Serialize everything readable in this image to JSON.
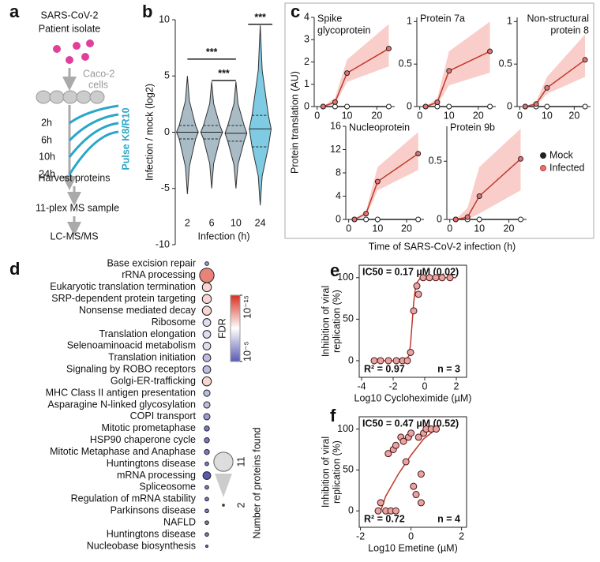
{
  "panel_labels": [
    "a",
    "b",
    "c",
    "d",
    "e",
    "f"
  ],
  "schematic": {
    "title": [
      "SARS-CoV-2",
      "Patient isolate"
    ],
    "cells": [
      "Caco-2",
      "cells"
    ],
    "timepoints": [
      "2h",
      "6h",
      "10h",
      "24h"
    ],
    "pulse": "Pulse K8/R10",
    "steps": [
      "Harvest proteins",
      "11-plex MS sample",
      "LC-MS/MS"
    ]
  },
  "chart_data": [
    {
      "type": "violin",
      "ylabel": "Infection / mock (log2)",
      "xlabel": "Infection (h)",
      "categories": [
        "2",
        "6",
        "10",
        "24"
      ],
      "min": [
        -5.5,
        -5,
        -5,
        -6.5
      ],
      "q1": [
        -0.6,
        -0.6,
        -0.8,
        -1.3
      ],
      "median": [
        0,
        0,
        -0.1,
        0.3
      ],
      "q3": [
        0.6,
        0.6,
        0.6,
        1.5
      ],
      "max": [
        5,
        4.5,
        4.5,
        9.5
      ],
      "colors": [
        "#a9bcc6",
        "#a9bcc6",
        "#a9bcc6",
        "#7fcbe3"
      ],
      "ylim": [
        -10,
        10
      ],
      "yticks": [
        -10,
        -5,
        0,
        5,
        10
      ],
      "annotations": [
        {
          "label": "***",
          "from": 0,
          "to": 2,
          "y": 6.5
        },
        {
          "label": "***",
          "from": 1,
          "to": 2,
          "y": 4.6
        },
        {
          "label": "***",
          "from": 3,
          "to": 3,
          "y": 9.6
        }
      ]
    },
    {
      "type": "line",
      "ylabel": "Protein translation (AU)",
      "xlabel": "Time of SARS-CoV-2 infection (h)",
      "x": [
        2,
        6,
        10,
        24
      ],
      "xlim": [
        -1,
        26
      ],
      "xticks": [
        0,
        10,
        20
      ],
      "legend": [
        {
          "name": "Mock",
          "color": "#222222"
        },
        {
          "name": "Infected",
          "color": "#c0392b"
        }
      ],
      "band_color": "#f7b9b4",
      "subplots": [
        {
          "title": [
            "Spike",
            "glycoprotein"
          ],
          "ylim": [
            0,
            4
          ],
          "yticks": [
            0,
            1,
            2,
            3,
            4
          ],
          "mock": [
            0,
            0,
            0,
            0
          ],
          "infected": [
            0,
            0.2,
            1.5,
            2.6
          ],
          "lower": [
            0,
            0.1,
            1.1,
            1.8
          ],
          "upper": [
            0,
            0.4,
            2.1,
            3.7
          ]
        },
        {
          "title": [
            "Protein 7a"
          ],
          "ylim": [
            0,
            1.05
          ],
          "yticks": [
            0,
            0.5,
            1
          ],
          "mock": [
            0,
            0,
            0,
            0
          ],
          "infected": [
            0,
            0.05,
            0.42,
            0.65
          ],
          "lower": [
            0,
            0.02,
            0.25,
            0.4
          ],
          "upper": [
            0,
            0.1,
            0.65,
            1.0
          ]
        },
        {
          "title": [
            "Non-structural",
            "protein 8"
          ],
          "ylim": [
            0,
            1.05
          ],
          "yticks": [
            0,
            0.5,
            1
          ],
          "mock": [
            0,
            0,
            0,
            0
          ],
          "infected": [
            0,
            0.03,
            0.22,
            0.55
          ],
          "lower": [
            0,
            0.01,
            0.15,
            0.35
          ],
          "upper": [
            0,
            0.06,
            0.35,
            0.85
          ]
        },
        {
          "title": [
            "Nucleoprotein"
          ],
          "ylim": [
            0,
            16
          ],
          "yticks": [
            0,
            4,
            8,
            12,
            16
          ],
          "mock": [
            0,
            0,
            0,
            0
          ],
          "infected": [
            0,
            1,
            6.5,
            11.3
          ],
          "lower": [
            0,
            0.5,
            5,
            8.5
          ],
          "upper": [
            0,
            1.5,
            9,
            15
          ]
        },
        {
          "title": [
            "Protein 9b"
          ],
          "ylim": [
            0,
            0.8
          ],
          "yticks": [
            0,
            0.5
          ],
          "mock": [
            0,
            0,
            0,
            0
          ],
          "infected": [
            0,
            0.02,
            0.2,
            0.52
          ],
          "lower": [
            0,
            0,
            0.05,
            0.25
          ],
          "upper": [
            0,
            0.1,
            0.45,
            0.78
          ]
        }
      ]
    },
    {
      "type": "dot",
      "categories": [
        "Base excision repair",
        "rRNA processing",
        "Eukaryotic translation termination",
        "SRP-dependent protein targeting",
        "Nonsense mediated decay",
        "Ribosome",
        "Translation elongation",
        "Selenoaminoacid metabolism",
        "Translation initiation",
        "Signaling by ROBO receptors",
        "Golgi-ER-trafficking",
        "MHC Class II antigen presentation",
        "Asparagine N-linked glycosylation",
        "COPI transport",
        "Mitotic prometaphase",
        "HSP90 chaperone cycle",
        "Mitotic Metaphase and Anaphase",
        "Huntingtons disease",
        "mRNA processing",
        "Spliceosome",
        "Regulation of mRNA stability",
        "Parkinsons disease",
        "NAFLD",
        "Huntingtons disease",
        "Nucleobase biosynthesis"
      ],
      "values": [
        3,
        11,
        7,
        7,
        7,
        6,
        6,
        6,
        6,
        6,
        7,
        5,
        5,
        5,
        4,
        4,
        4,
        3,
        6,
        3,
        3,
        3,
        3,
        3,
        2
      ],
      "fdr_log10": [
        -7,
        -13,
        -11,
        -11,
        -11,
        -9,
        -9,
        -9,
        -8,
        -8,
        -11,
        -8,
        -8,
        -7,
        -6,
        -6,
        -6,
        -6,
        -5,
        -6,
        -6,
        -6,
        -6,
        -6,
        -6
      ],
      "colorbar": {
        "label": "FDR",
        "lim": [
          -15,
          -5
        ],
        "colors": [
          "#d7301f",
          "#ffffff",
          "#5a5ab4"
        ],
        "ticks": [
          {
            "value": -15,
            "label": "10⁻¹⁵"
          },
          {
            "value": -5,
            "label": "10⁻⁵"
          }
        ]
      },
      "size_legend": {
        "title": "Number of proteins found",
        "ticks": [
          11,
          2
        ]
      }
    },
    {
      "type": "scatter",
      "title": "IC50 = 0.17 µM (0.02)",
      "ylabel": [
        "Inhibition of viral",
        "replication (%)"
      ],
      "xlabel": "Log10 Cycloheximide (µM)",
      "x": [
        -3.2,
        -2.8,
        -2.3,
        -1.8,
        -1.4,
        -1.1,
        -0.9,
        -0.7,
        -0.5,
        -0.4,
        -0.1,
        0.3,
        0.7,
        1.1,
        1.6
      ],
      "values": [
        0,
        0,
        0,
        0,
        0,
        0,
        10,
        60,
        90,
        80,
        100,
        100,
        100,
        100,
        100
      ],
      "fit": {
        "x": [
          -3,
          -2,
          -1.2,
          -1,
          -0.9,
          -0.8,
          -0.7,
          -0.6,
          -0.5,
          -0.3,
          0,
          1,
          2
        ],
        "y": [
          0,
          0,
          1,
          6,
          20,
          45,
          70,
          86,
          94,
          99,
          100,
          100,
          100
        ]
      },
      "color": "#c0392b",
      "point_color": "#e8a3a3",
      "xlim": [
        -4.15,
        2.65
      ],
      "xticks": [
        -4,
        -2,
        0,
        2
      ],
      "ylim": [
        -20,
        115
      ],
      "yticks": [
        0,
        50,
        100
      ],
      "annotations": [
        "R² = 0.97",
        "n = 3"
      ]
    },
    {
      "type": "scatter",
      "title": "IC50 = 0.47 µM (0.52)",
      "ylabel": [
        "Inhibition of viral",
        "replication (%)"
      ],
      "xlabel": "Log10 Emetine (µM)",
      "x": [
        -1.3,
        -1.2,
        -1.0,
        -0.8,
        -0.6,
        -0.9,
        -0.7,
        -0.6,
        -0.4,
        -0.3,
        -0.2,
        -0.1,
        0,
        0.1,
        0.2,
        0.3,
        0.4,
        0.5,
        0.6,
        0.8,
        1.0,
        0.4
      ],
      "values": [
        0,
        10,
        0,
        0,
        0,
        70,
        75,
        80,
        90,
        85,
        60,
        90,
        95,
        30,
        20,
        90,
        10,
        95,
        100,
        100,
        100,
        45
      ],
      "fit": {
        "x": [
          -1.2,
          -1,
          -0.5,
          0,
          0.5,
          1
        ],
        "y": [
          0,
          18,
          45,
          68,
          88,
          100
        ]
      },
      "color": "#c0392b",
      "point_color": "#e8a3a3",
      "xlim": [
        -2.05,
        2.2
      ],
      "xticks": [
        -2,
        0,
        2
      ],
      "ylim": [
        -20,
        115
      ],
      "yticks": [
        0,
        50,
        100
      ],
      "annotations": [
        "R² = 0.72",
        "n = 4"
      ]
    }
  ]
}
